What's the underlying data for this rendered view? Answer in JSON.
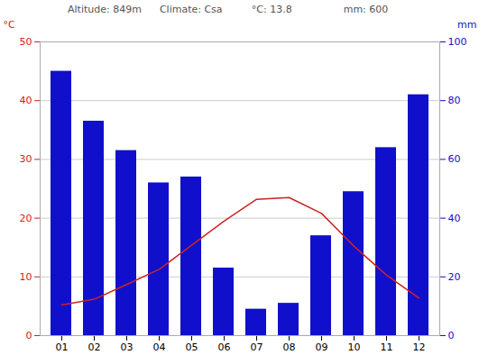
{
  "chart_data": {
    "type": "bar",
    "categories": [
      "01",
      "02",
      "03",
      "04",
      "05",
      "06",
      "07",
      "08",
      "09",
      "10",
      "11",
      "12"
    ],
    "series": [
      {
        "type": "bar",
        "color": "#1010cc",
        "axis": "y2",
        "values": [
          90,
          73,
          63,
          52,
          54,
          23,
          9,
          11,
          34,
          49,
          64,
          82
        ]
      },
      {
        "type": "line",
        "color": "#cc2222",
        "values": [
          5.2,
          6.2,
          8.7,
          11.3,
          15.4,
          19.5,
          23.2,
          23.5,
          20.8,
          15.2,
          10.3,
          6.4
        ]
      }
    ],
    "ylabel": "°C",
    "y2label": "mm",
    "ylim": [
      0,
      50
    ],
    "yticks": [
      0,
      10,
      20,
      30,
      40,
      50
    ],
    "y2lim": [
      0,
      100
    ],
    "y2ticks": [
      0,
      20,
      40,
      60,
      80,
      100
    ],
    "grid": true,
    "annotations": [
      "Altitude: 849m",
      "Climate: Csa",
      "°C: 13.8",
      "mm: 600"
    ]
  }
}
